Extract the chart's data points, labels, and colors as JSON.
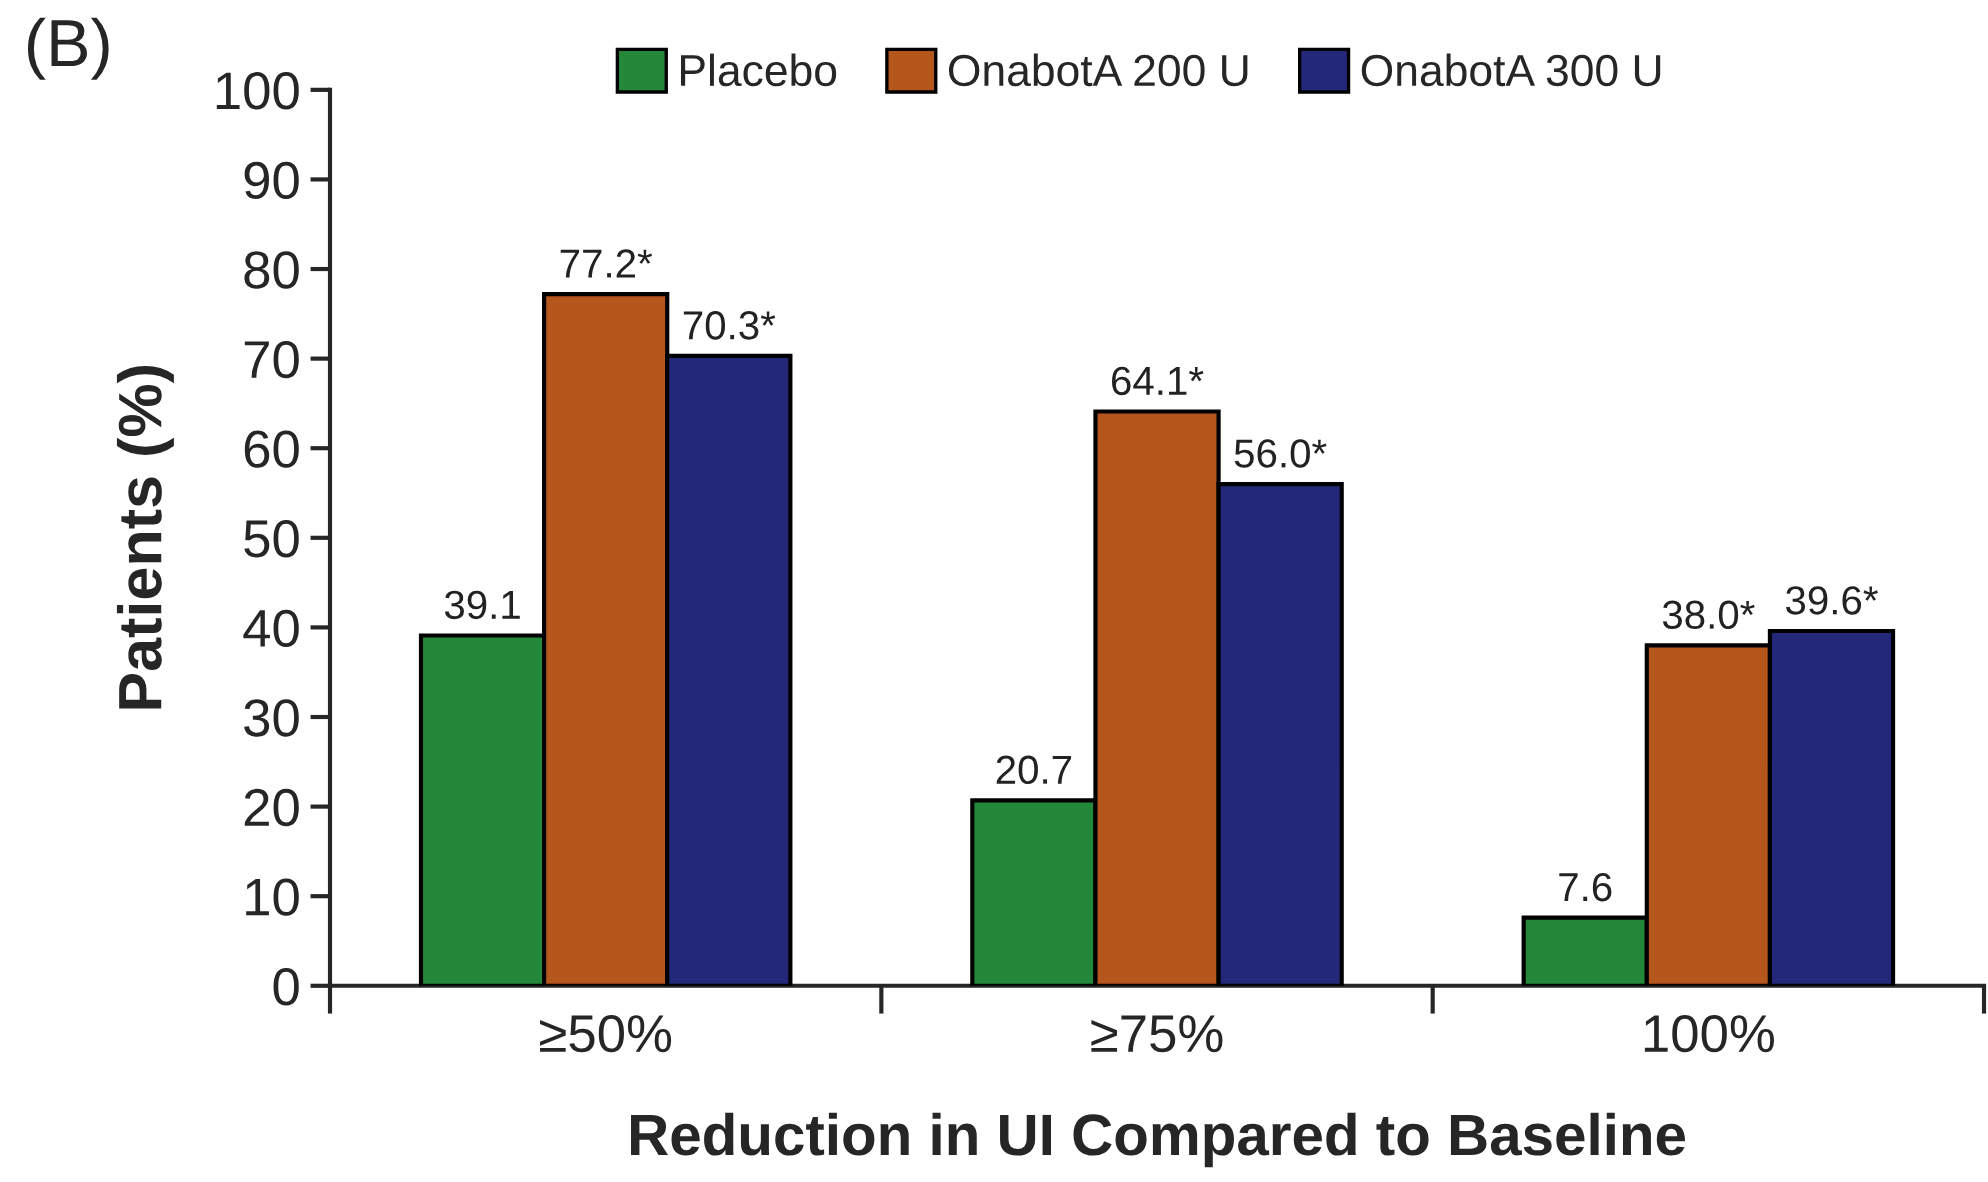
{
  "chart_data": {
    "type": "bar",
    "xlabel": "Reduction in UI Compared to Baseline",
    "ylabel": "Patients (%)",
    "annotations": [
      "(B)"
    ],
    "categories": [
      "≥50%",
      "≥75%",
      "100%"
    ],
    "series": [
      {
        "name": "Placebo",
        "color": "#23883a",
        "values": [
          39.1,
          20.7,
          7.6
        ],
        "value_labels": [
          "39.1",
          "20.7",
          "7.6"
        ]
      },
      {
        "name": "OnabotA 200 U",
        "color": "#b5561c",
        "values": [
          77.2,
          64.1,
          38.0
        ],
        "value_labels": [
          "77.2*",
          "64.1*",
          "38.0*"
        ]
      },
      {
        "name": "OnabotA 300 U",
        "color": "#23287a",
        "values": [
          70.3,
          56.0,
          39.6
        ],
        "value_labels": [
          "70.3*",
          "56.0*",
          "39.6*"
        ]
      }
    ],
    "ylim": [
      0,
      100
    ],
    "yticks": [
      0,
      10,
      20,
      30,
      40,
      50,
      60,
      70,
      80,
      90,
      100
    ],
    "legend": "top"
  }
}
